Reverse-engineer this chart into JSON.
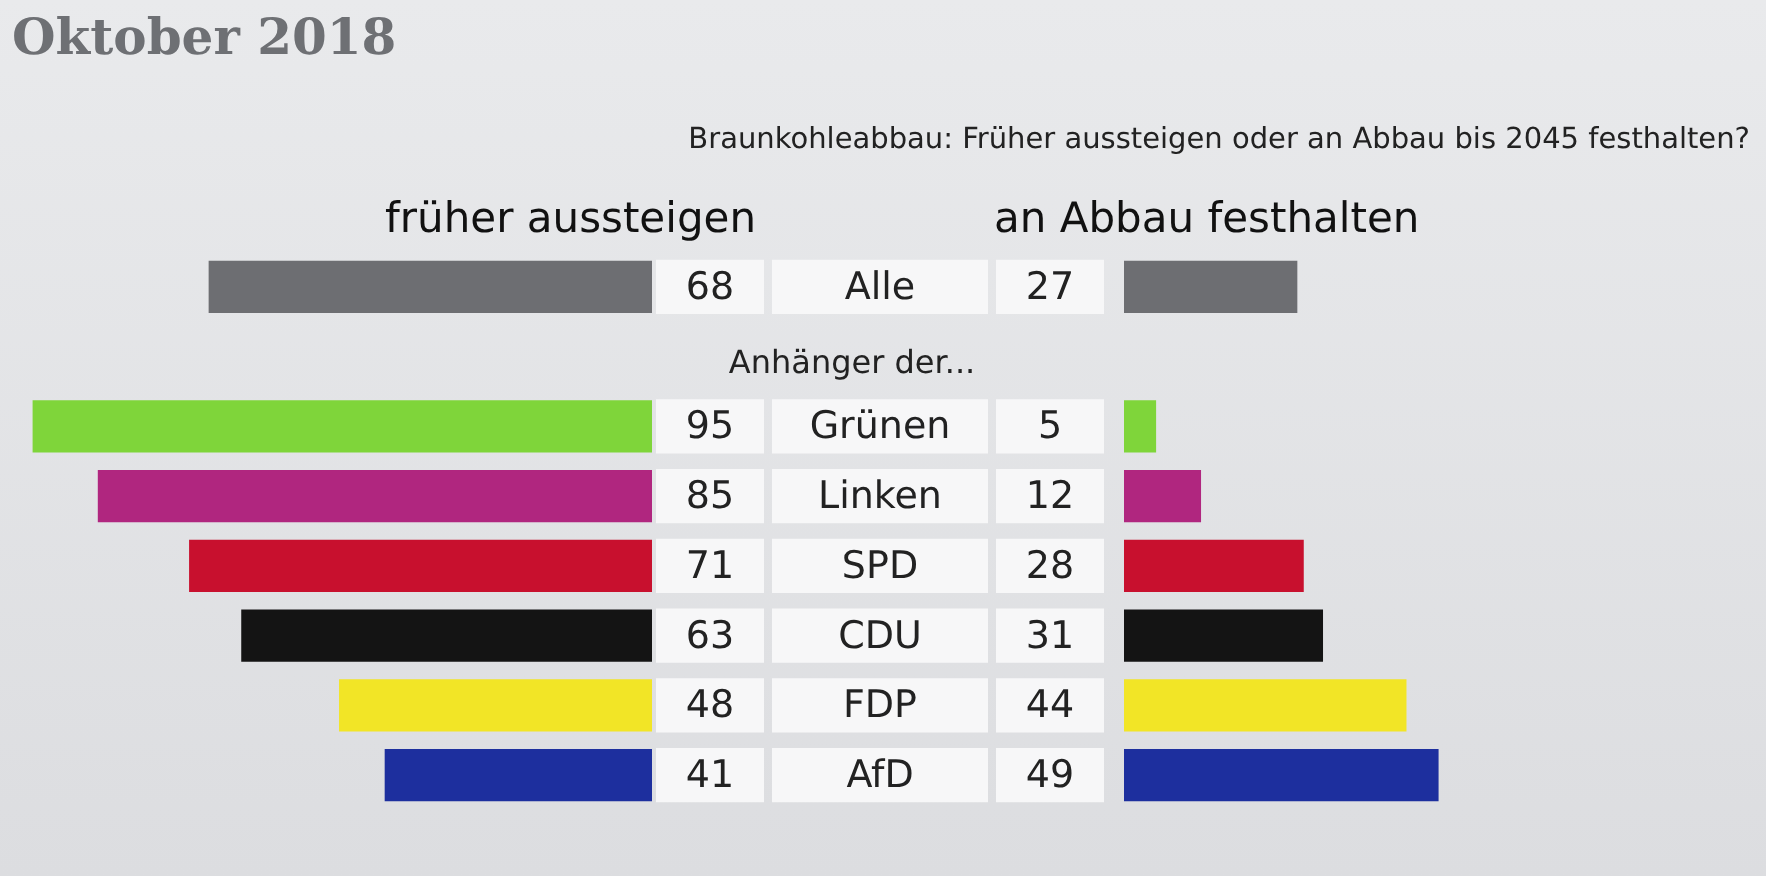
{
  "chart_data": [
    {
      "type": "bar",
      "orientation": "horizontal",
      "subtitle": "Oktober 2018",
      "annotations": [
        "Anhänger der..."
      ],
      "categories": [
        "Alle",
        null,
        "Grünen",
        "Linken",
        "SPD",
        "CDU",
        "FDP",
        "AfD"
      ],
      "series": [
        {
          "name": "früher aussteigen",
          "colors": [
            "#6d6e72",
            "#6d6e72",
            "#7fd53a",
            "#b0267f",
            "#c8102e",
            "#141414",
            "#f2e526",
            "#1d2f9e"
          ],
          "values": [
            68,
            null,
            95,
            85,
            71,
            63,
            48,
            41
          ]
        }
      ],
      "xlim": [
        100,
        0
      ],
      "data_labels": true,
      "tick_labels": "y",
      "grid": false,
      "legend": false
    },
    {
      "type": "bar",
      "orientation": "horizontal",
      "title": "Braunkohleabbau: Früher aussteigen oder an Abbau bis 2045 festhalten?",
      "categories": [
        null,
        null,
        null,
        null,
        null,
        null,
        null,
        null
      ],
      "series": [
        {
          "name": "an Abbau festhalten",
          "colors": [
            "#6d6e72",
            "#6d6e72",
            "#7fd53a",
            "#b0267f",
            "#c8102e",
            "#141414",
            "#f2e526",
            "#1d2f9e"
          ],
          "values": [
            27,
            null,
            5,
            12,
            28,
            31,
            44,
            49
          ]
        }
      ],
      "xlim": [
        0,
        100
      ],
      "data_labels": true,
      "tick_labels": false,
      "grid": false,
      "legend": false
    }
  ]
}
